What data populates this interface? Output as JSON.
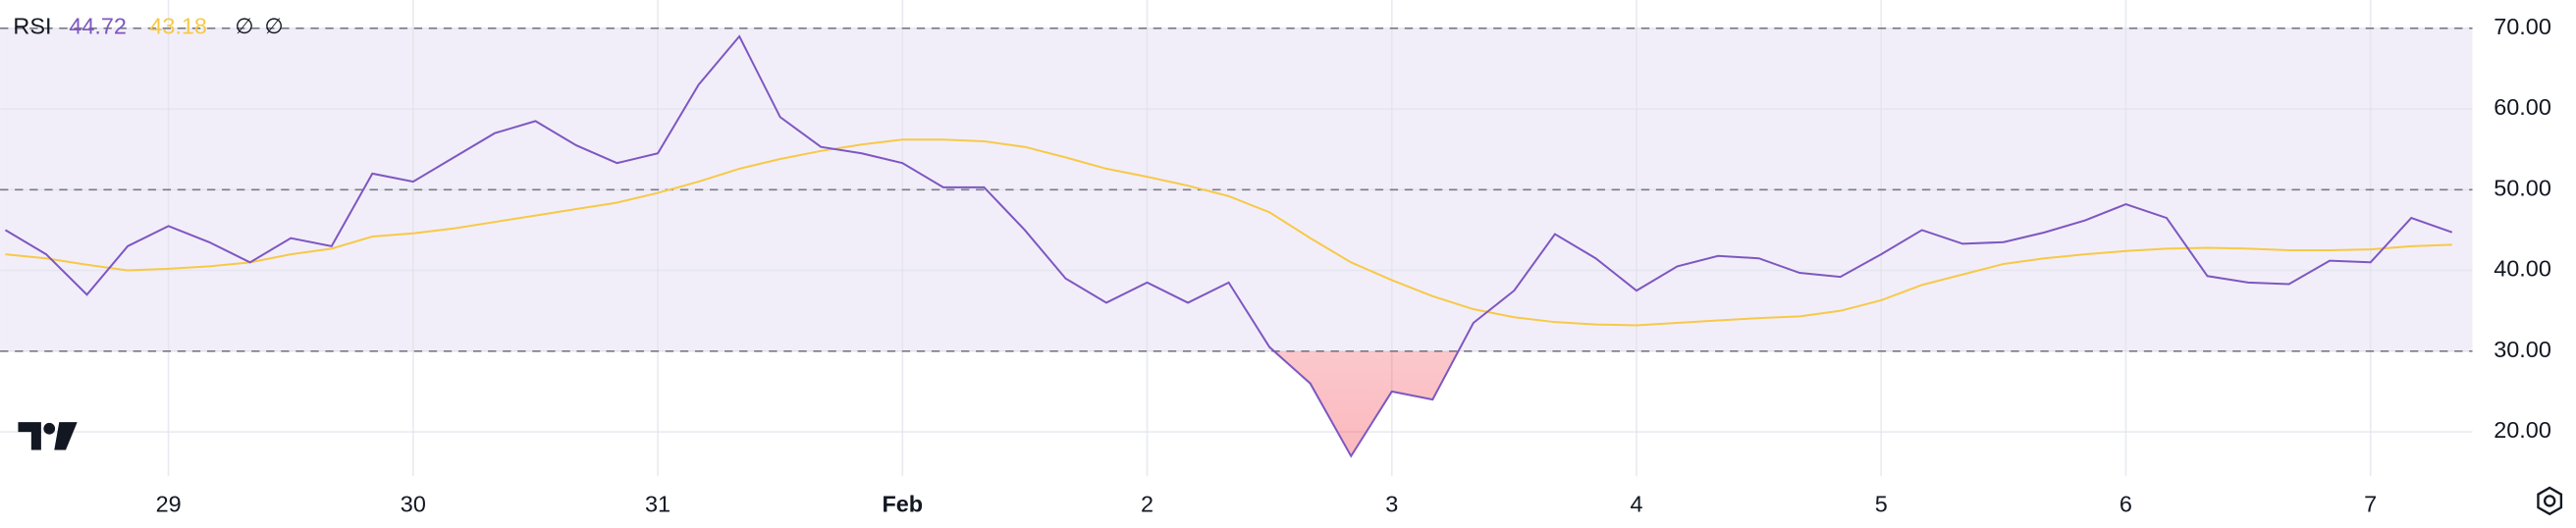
{
  "chart_data": {
    "type": "line",
    "title": "RSI",
    "header_flags": [
      "∅",
      "∅"
    ],
    "series": [
      {
        "color": "#7e57c2",
        "values": [
          45,
          42,
          37,
          43,
          45.5,
          43.5,
          41,
          44,
          43,
          52,
          51,
          54,
          57,
          58.5,
          55.5,
          53.3,
          54.5,
          63,
          69,
          59,
          55.3,
          54.5,
          53.3,
          50.3,
          50.3,
          45,
          39,
          36,
          38.5,
          36,
          38.5,
          30.5,
          26,
          17,
          25,
          24,
          33.5,
          37.5,
          44.5,
          41.5,
          37.5,
          40.5,
          41.8,
          41.5,
          39.7,
          39.2,
          42,
          45,
          43.3,
          43.5,
          44.7,
          46.2,
          48.2,
          46.5,
          39.3,
          38.5,
          38.3,
          41.2,
          41,
          46.5,
          44.72
        ]
      },
      {
        "color": "#f7c948",
        "values": [
          42,
          41.5,
          40.7,
          40,
          40.2,
          40.5,
          41,
          42,
          42.7,
          44.2,
          44.6,
          45.2,
          46,
          46.8,
          47.6,
          48.4,
          49.6,
          51,
          52.6,
          53.8,
          54.8,
          55.6,
          56.2,
          56.2,
          56,
          55.3,
          54,
          52.6,
          51.6,
          50.5,
          49.2,
          47.2,
          44,
          41,
          38.8,
          36.8,
          35.2,
          34.2,
          33.6,
          33.3,
          33.2,
          33.5,
          33.8,
          34.1,
          34.3,
          35,
          36.3,
          38.2,
          39.5,
          40.8,
          41.5,
          42,
          42.4,
          42.7,
          42.8,
          42.7,
          42.5,
          42.5,
          42.6,
          43,
          43.18
        ]
      }
    ],
    "band": [
      30,
      70
    ],
    "midline": 50,
    "ylim": [
      14.5,
      73.5
    ],
    "yticks": [
      {
        "value": 20,
        "label": "20.00"
      },
      {
        "value": 30,
        "label": "30.00"
      },
      {
        "value": 40,
        "label": "40.00"
      },
      {
        "value": 50,
        "label": "50.00"
      },
      {
        "value": 60,
        "label": "60.00"
      },
      {
        "value": 70,
        "label": "70.00"
      }
    ],
    "xlim": [
      -0.13,
      60.5
    ],
    "xticks": [
      {
        "value": 4,
        "label": "29"
      },
      {
        "value": 10,
        "label": "30"
      },
      {
        "value": 16,
        "label": "31"
      },
      {
        "value": 22,
        "label": "Feb"
      },
      {
        "value": 28,
        "label": "2"
      },
      {
        "value": 34,
        "label": "3"
      },
      {
        "value": 40,
        "label": "4"
      },
      {
        "value": 46,
        "label": "5"
      },
      {
        "value": 52,
        "label": "6"
      },
      {
        "value": 58,
        "label": "7"
      }
    ],
    "grid": true
  }
}
